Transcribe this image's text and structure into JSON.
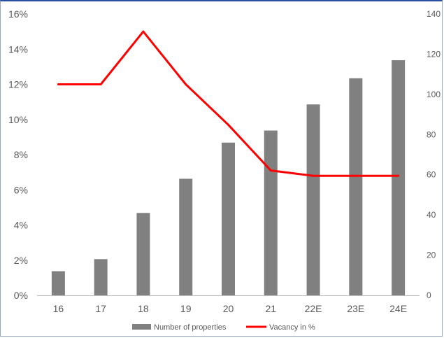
{
  "chart_data": {
    "type": "bar",
    "categories": [
      "16",
      "17",
      "18",
      "19",
      "20",
      "21",
      "22E",
      "23E",
      "24E"
    ],
    "series": [
      {
        "name": "Number of properties",
        "type": "bar",
        "axis": "right",
        "color": "#808080",
        "values": [
          12,
          18,
          41,
          58,
          76,
          82,
          95,
          108,
          117
        ]
      },
      {
        "name": "Vacancy in %",
        "type": "line",
        "axis": "left",
        "color": "#ff0000",
        "values": [
          12.0,
          12.0,
          15.0,
          12.0,
          9.7,
          7.1,
          6.8,
          6.8,
          6.8
        ]
      }
    ],
    "ylim_left": [
      0,
      16
    ],
    "yticks_left": [
      "0%",
      "2%",
      "4%",
      "6%",
      "8%",
      "10%",
      "12%",
      "14%",
      "16%"
    ],
    "ylim_right": [
      0,
      140
    ],
    "yticks_right": [
      "0",
      "20",
      "40",
      "60",
      "80",
      "100",
      "120",
      "140"
    ],
    "grid": false,
    "legend_position": "bottom"
  }
}
